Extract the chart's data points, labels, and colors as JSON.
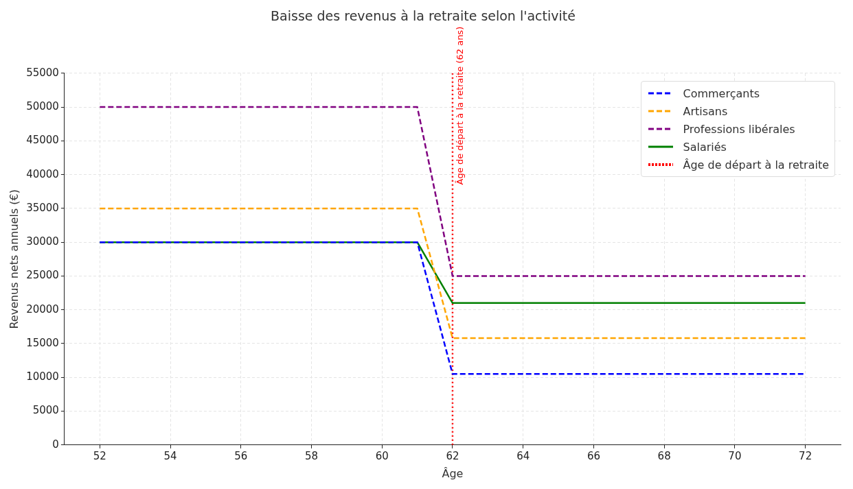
{
  "chart_data": {
    "type": "line",
    "title": "Baisse des revenus à la retraite selon l'activité",
    "xlabel": "Âge",
    "ylabel": "Revenus nets annuels (€)",
    "xlim": [
      51,
      73
    ],
    "xticks": [
      52,
      54,
      56,
      58,
      60,
      62,
      64,
      66,
      68,
      70,
      72
    ],
    "ylim": [
      0,
      55000
    ],
    "yticks": [
      0,
      5000,
      10000,
      15000,
      20000,
      25000,
      30000,
      35000,
      40000,
      45000,
      50000,
      55000
    ],
    "x": [
      52,
      61,
      62,
      72
    ],
    "series": [
      {
        "name": "Commerçants",
        "color": "#0000ff",
        "line_style": "dashed",
        "values": [
          30000,
          30000,
          10500,
          10500
        ]
      },
      {
        "name": "Artisans",
        "color": "#ffa500",
        "line_style": "dashed",
        "values": [
          35000,
          35000,
          15800,
          15800
        ]
      },
      {
        "name": "Professions libérales",
        "color": "#800080",
        "line_style": "dashed",
        "values": [
          50000,
          50000,
          25000,
          25000
        ]
      },
      {
        "name": "Salariés",
        "color": "#008000",
        "line_style": "solid",
        "values": [
          30000,
          30000,
          21000,
          21000
        ]
      },
      {
        "name": "Âge de départ à la retraite",
        "color": "#ff0000",
        "line_style": "dotted",
        "x": [
          62,
          62
        ],
        "values": [
          0,
          55000
        ]
      }
    ],
    "annotations": [
      {
        "text": "Âge de départ à la retraite (62 ans)",
        "x": 62,
        "y": 38500
      }
    ],
    "grid": true,
    "legend": "top right",
    "marker": "none"
  }
}
